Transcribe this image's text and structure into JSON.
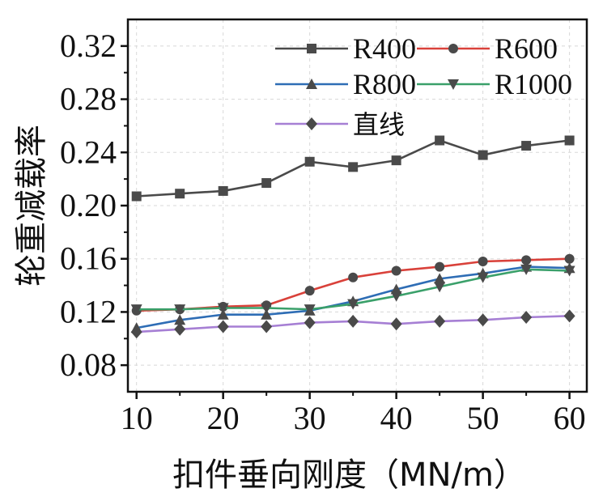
{
  "chart_data": {
    "type": "line",
    "title": "",
    "xlabel": "扣件垂向刚度（MN/m）",
    "ylabel": "轮重减载率",
    "x": [
      10,
      15,
      20,
      25,
      30,
      35,
      40,
      45,
      50,
      55,
      60
    ],
    "xlim": [
      9,
      62
    ],
    "ylim": [
      0.06,
      0.34
    ],
    "xticks": [
      "10",
      "20",
      "30",
      "40",
      "50",
      "60"
    ],
    "xtick_values": [
      10,
      20,
      30,
      40,
      50,
      60
    ],
    "yticks": [
      "0.08",
      "0.12",
      "0.16",
      "0.20",
      "0.24",
      "0.28",
      "0.32"
    ],
    "ytick_values": [
      0.08,
      0.12,
      0.16,
      0.2,
      0.24,
      0.28,
      0.32
    ],
    "grid": true,
    "legend_position": "top-right",
    "series": [
      {
        "name": "R400",
        "color": "#4a4a4a",
        "marker": "square",
        "values": [
          0.207,
          0.209,
          0.211,
          0.217,
          0.233,
          0.229,
          0.234,
          0.249,
          0.238,
          0.245,
          0.249
        ]
      },
      {
        "name": "R600",
        "color": "#d9413a",
        "marker": "circle",
        "values": [
          0.121,
          0.122,
          0.124,
          0.125,
          0.136,
          0.146,
          0.151,
          0.154,
          0.158,
          0.159,
          0.16
        ]
      },
      {
        "name": "R800",
        "color": "#2e6db5",
        "marker": "triangle-up",
        "values": [
          0.108,
          0.114,
          0.118,
          0.118,
          0.121,
          0.128,
          0.137,
          0.145,
          0.149,
          0.154,
          0.153
        ]
      },
      {
        "name": "R1000",
        "color": "#3aa06a",
        "marker": "triangle-down",
        "values": [
          0.122,
          0.122,
          0.123,
          0.123,
          0.122,
          0.126,
          0.132,
          0.139,
          0.146,
          0.152,
          0.151
        ]
      },
      {
        "name": "直线",
        "color": "#a67fd4",
        "marker": "diamond",
        "values": [
          0.105,
          0.107,
          0.109,
          0.109,
          0.112,
          0.113,
          0.111,
          0.113,
          0.114,
          0.116,
          0.117
        ]
      }
    ]
  }
}
